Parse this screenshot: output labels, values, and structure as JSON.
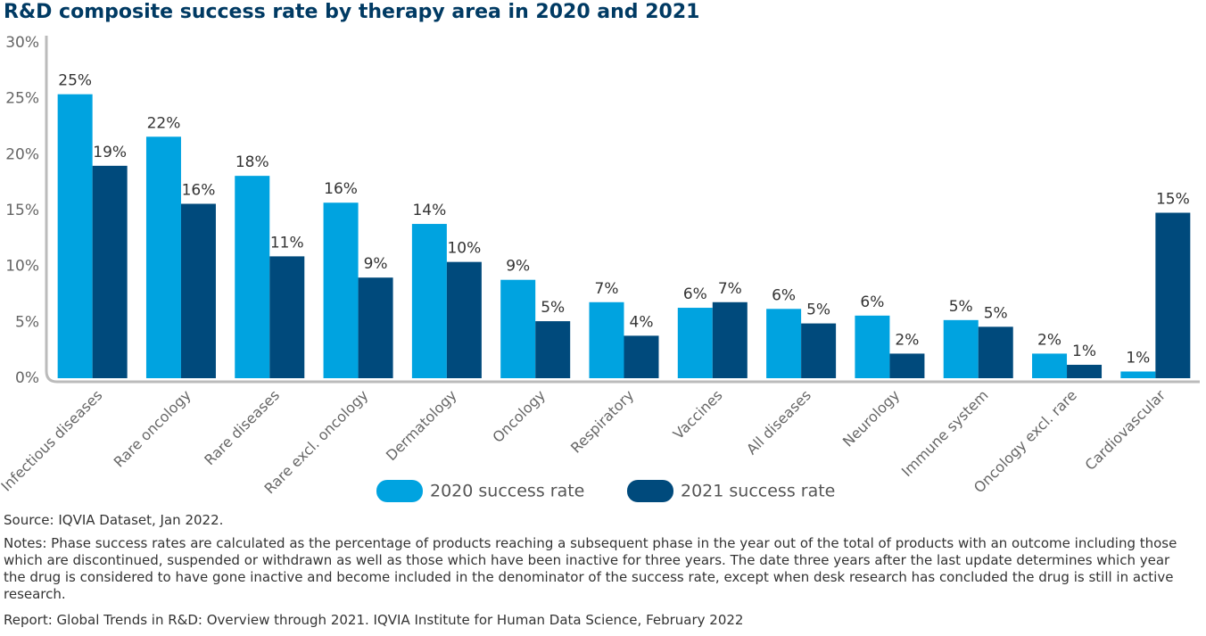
{
  "chart_data": {
    "type": "bar",
    "title": "R&D composite success rate by therapy area in 2020 and 2021",
    "categories": [
      "Infectious diseases",
      "Rare oncology",
      "Rare diseases",
      "Rare excl. oncology",
      "Dermatology",
      "Oncology",
      "Respiratory",
      "Vaccines",
      "All diseases",
      "Neurology",
      "Immune system",
      "Oncology excl. rare",
      "Cardiovascular"
    ],
    "series": [
      {
        "name": "2020 success rate",
        "color": "#00a3e0",
        "values": [
          25.4,
          21.6,
          18.1,
          15.7,
          13.8,
          8.8,
          6.8,
          6.3,
          6.2,
          5.6,
          5.2,
          2.2,
          0.6
        ],
        "value_labels": [
          "25%",
          "22%",
          "18%",
          "16%",
          "14%",
          "9%",
          "7%",
          "6%",
          "6%",
          "6%",
          "5%",
          "2%",
          "1%"
        ]
      },
      {
        "name": "2021 success rate",
        "color": "#004a7c",
        "values": [
          19.0,
          15.6,
          10.9,
          9.0,
          10.4,
          5.1,
          3.8,
          6.8,
          4.9,
          2.2,
          4.6,
          1.2,
          14.8
        ],
        "value_labels": [
          "19%",
          "16%",
          "11%",
          "9%",
          "10%",
          "5%",
          "4%",
          "7%",
          "5%",
          "2%",
          "5%",
          "1%",
          "15%"
        ]
      }
    ],
    "ylim": [
      0,
      30
    ],
    "yticks": [
      {
        "value": 0,
        "label": "0%"
      },
      {
        "value": 5,
        "label": "5%"
      },
      {
        "value": 10,
        "label": "10%"
      },
      {
        "value": 15,
        "label": "15%"
      },
      {
        "value": 20,
        "label": "20%"
      },
      {
        "value": 25,
        "label": "25%"
      },
      {
        "value": 30,
        "label": "30%"
      }
    ],
    "source": "Source: IQVIA Dataset, Jan 2022.",
    "notes": "Notes: Phase success rates are calculated as the percentage of products reaching a subsequent phase in the year out of the total of products with an outcome including those which are discontinued, suspended or withdrawn as well as those which have been inactive for three years. The date three years after the last update determines which year the drug is considered to have gone inactive and become included in the denominator of the success rate, except when desk research has concluded the drug is still in active research.",
    "report": "Report: Global Trends in R&D: Overview through 2021. IQVIA Institute for Human Data Science, February 2022"
  }
}
